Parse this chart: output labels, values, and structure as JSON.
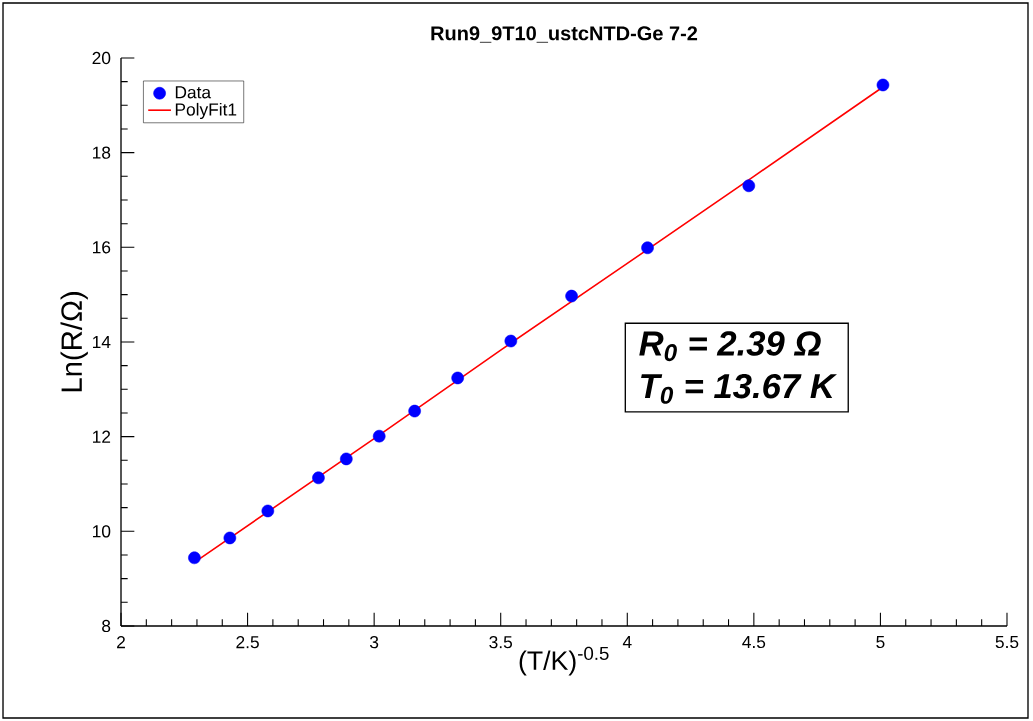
{
  "chart_data": {
    "type": "scatter",
    "title": "Run9_9T10_ustcNTD-Ge 7-2",
    "xlabel": "(T/K)$^{-0.5}$",
    "ylabel": "Ln(R/Ω)",
    "xlim": [
      2,
      5.5
    ],
    "xticks": [
      2,
      2.5,
      3,
      3.5,
      4,
      4.5,
      5,
      5.5
    ],
    "ylim": [
      8,
      20
    ],
    "yticks": [
      8,
      10,
      12,
      14,
      16,
      18,
      20
    ],
    "grid": false,
    "legend": "top left",
    "series": [
      {
        "name": "Data",
        "color": "#0000ff",
        "marker": "circle",
        "x": [
          2.29,
          2.43,
          2.58,
          2.78,
          2.89,
          3.02,
          3.16,
          3.33,
          3.54,
          3.78,
          4.08,
          4.48,
          5.01
        ],
        "values": [
          9.44,
          9.86,
          10.43,
          11.13,
          11.53,
          12.01,
          12.54,
          13.24,
          14.02,
          14.97,
          15.99,
          17.3,
          19.43
        ]
      },
      {
        "name": "PolyFit1",
        "type": "line",
        "color": "#ff0000",
        "marker": "none",
        "line_style": "solid",
        "x": [
          2.3,
          3.0,
          3.5,
          4.0,
          4.5,
          5.0
        ],
        "values": [
          9.38,
          11.96,
          13.83,
          15.66,
          17.5,
          19.35
        ]
      }
    ],
    "annotations": [
      "R$_{0}$ = 2.39 Ω",
      "T$_{0}$ = 13.67 K"
    ]
  }
}
